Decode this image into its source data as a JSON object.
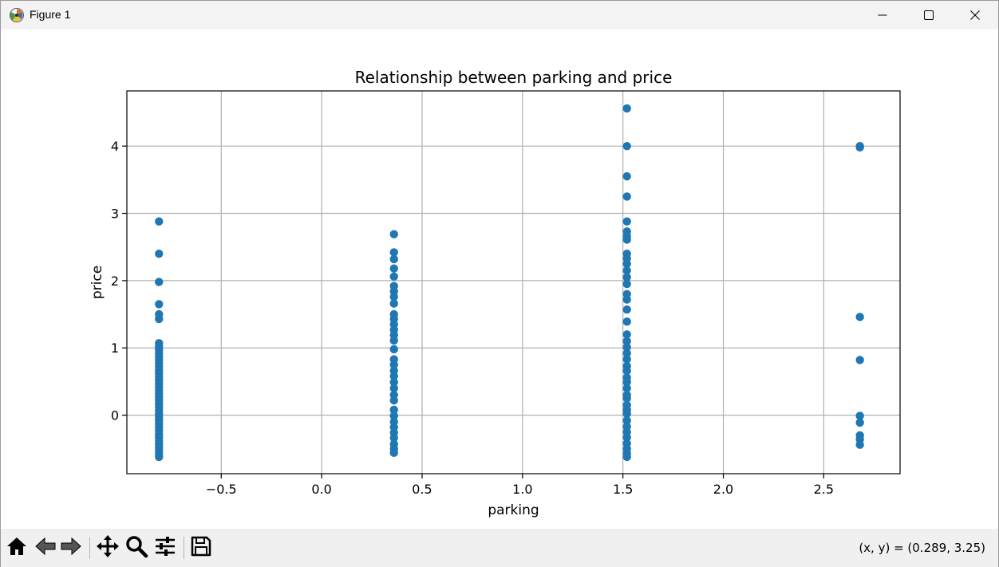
{
  "window": {
    "title": "Figure 1",
    "icons": {
      "app": "matplotlib-icon",
      "minimize": "minimize-icon",
      "maximize": "maximize-icon",
      "close": "close-icon"
    }
  },
  "toolbar": {
    "buttons": [
      {
        "icon": "home-icon"
      },
      {
        "icon": "back-icon"
      },
      {
        "icon": "forward-icon"
      },
      {
        "icon": "pan-icon"
      },
      {
        "icon": "zoom-icon"
      },
      {
        "icon": "configure-subplots-icon"
      },
      {
        "icon": "save-icon"
      }
    ],
    "coordinates": "(x, y) = (0.289, 3.25)"
  },
  "chart_data": {
    "type": "scatter",
    "title": "Relationship between parking and price",
    "xlabel": "parking",
    "ylabel": "price",
    "xlim": [
      -0.97,
      2.88
    ],
    "ylim": [
      -0.87,
      4.82
    ],
    "xticks": [
      -0.5,
      0.0,
      0.5,
      1.0,
      1.5,
      2.0,
      2.5
    ],
    "xtick_labels": [
      "−0.5",
      "0.0",
      "0.5",
      "1.0",
      "1.5",
      "2.0",
      "2.5"
    ],
    "yticks": [
      0,
      1,
      2,
      3,
      4
    ],
    "ytick_labels": [
      "0",
      "1",
      "2",
      "3",
      "4"
    ],
    "grid": true,
    "marker_color": "#1f77b4",
    "series": [
      {
        "x_value": -0.81,
        "y_values": [
          2.88,
          2.4,
          1.98,
          1.65,
          1.5,
          1.43,
          1.07,
          1.02,
          0.97,
          0.92,
          0.87,
          0.82,
          0.77,
          0.72,
          0.67,
          0.62,
          0.57,
          0.52,
          0.47,
          0.42,
          0.37,
          0.32,
          0.27,
          0.22,
          0.17,
          0.12,
          0.07,
          0.02,
          -0.03,
          -0.08,
          -0.13,
          -0.18,
          -0.23,
          -0.28,
          -0.33,
          -0.38,
          -0.43,
          -0.48,
          -0.53,
          -0.58,
          -0.62
        ]
      },
      {
        "x_value": 0.36,
        "y_values": [
          2.69,
          2.42,
          2.32,
          2.18,
          2.06,
          1.92,
          1.84,
          1.76,
          1.66,
          1.5,
          1.43,
          1.35,
          1.27,
          1.19,
          1.11,
          0.98,
          0.83,
          0.75,
          0.66,
          0.58,
          0.49,
          0.4,
          0.3,
          0.22,
          0.08,
          -0.01,
          -0.1,
          -0.18,
          -0.26,
          -0.34,
          -0.43,
          -0.5,
          -0.56
        ]
      },
      {
        "x_value": 1.52,
        "y_values": [
          4.56,
          4.0,
          3.55,
          3.25,
          2.88,
          2.73,
          2.66,
          2.61,
          2.4,
          2.33,
          2.25,
          2.15,
          2.05,
          1.95,
          1.8,
          1.72,
          1.57,
          1.39,
          1.2,
          1.1,
          1.01,
          0.92,
          0.83,
          0.73,
          0.66,
          0.56,
          0.49,
          0.4,
          0.3,
          0.25,
          0.15,
          0.08,
          0.02,
          -0.08,
          -0.17,
          -0.25,
          -0.33,
          -0.42,
          -0.5,
          -0.57,
          -0.62
        ]
      },
      {
        "x_value": 2.68,
        "y_values": [
          4.0,
          3.98,
          1.46,
          0.82,
          -0.01,
          -0.11,
          -0.3,
          -0.36,
          -0.44
        ]
      }
    ]
  }
}
